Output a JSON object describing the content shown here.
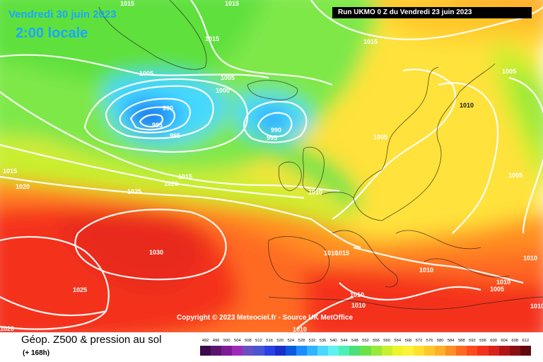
{
  "header": {
    "date": "Vendredi 30 juin 2023",
    "local_time": "2:00 locale",
    "run": "Run UKMO 0 Z du Vendredi 23 juin 2023"
  },
  "copyright": "Copyright © 2023 Meteociel.fr - Source UK MetOffice",
  "footer": {
    "title": "Géop. Z500 & pression au sol",
    "subtitle": "(+ 168h)"
  },
  "isobar_labels": [
    "1015",
    "1015",
    "1010",
    "1015",
    "1005",
    "1005",
    "1000",
    "990",
    "985",
    "995",
    "990",
    "995",
    "1015",
    "1005",
    "1010",
    "1015",
    "1020",
    "1025",
    "1020",
    "1015",
    "1010",
    "1030",
    "1025",
    "1020",
    "1010",
    "1015",
    "1010",
    "1010",
    "1010",
    "1010",
    "1010",
    "1005",
    "1005",
    "1010",
    "1005"
  ],
  "legend": {
    "values": [
      "492",
      "496",
      "500",
      "504",
      "508",
      "512",
      "516",
      "520",
      "524",
      "528",
      "532",
      "536",
      "540",
      "544",
      "548",
      "552",
      "556",
      "560",
      "564",
      "568",
      "572",
      "576",
      "580",
      "584",
      "588",
      "592",
      "596",
      "600",
      "604",
      "608",
      "612"
    ],
    "colors": [
      "#3b0a4a",
      "#5b1470",
      "#7d1b96",
      "#9c2cb8",
      "#6a4fc0",
      "#4a55d6",
      "#2a40e8",
      "#1a2fc8",
      "#0a5ae0",
      "#1a8cff",
      "#2fb4ff",
      "#4bd7ff",
      "#5ff0f0",
      "#4df0b4",
      "#4ae07a",
      "#6ae34a",
      "#9ae83a",
      "#c8ef2e",
      "#ecf52a",
      "#fff23a",
      "#ffe12e",
      "#ffc82a",
      "#ffb028",
      "#ff8f24",
      "#ff6a22",
      "#ff4a1e",
      "#f4311c",
      "#d8241a",
      "#b01616",
      "#8a0f12",
      "#5e0a0e"
    ]
  }
}
